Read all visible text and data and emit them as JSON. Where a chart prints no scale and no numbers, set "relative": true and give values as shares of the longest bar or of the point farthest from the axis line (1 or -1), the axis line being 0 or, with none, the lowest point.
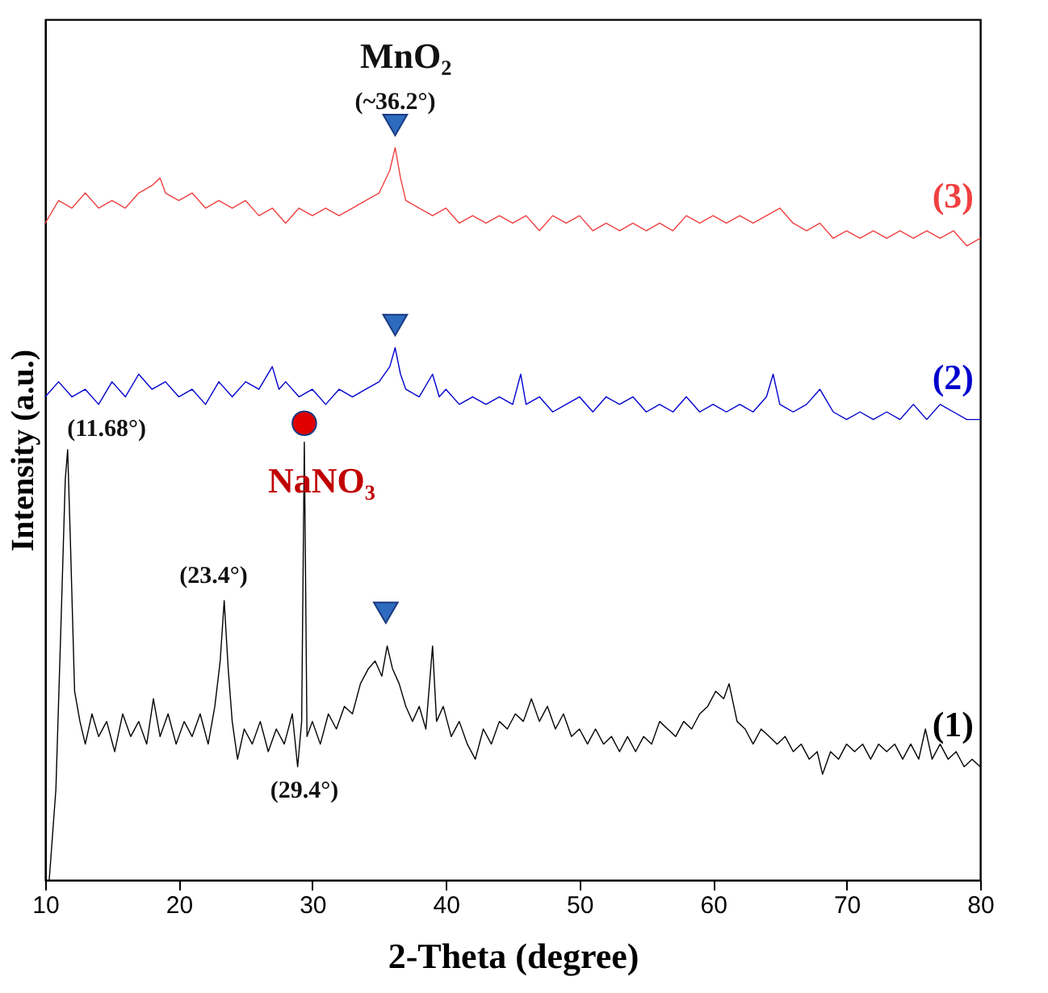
{
  "chart_data": {
    "type": "line",
    "relative": true,
    "xlabel": "2-Theta (degree)",
    "ylabel": "Intensity (a.u.)",
    "xlim": [
      10,
      80
    ],
    "xticks": [
      10,
      20,
      30,
      40,
      50,
      60,
      70,
      80
    ],
    "tick_labels": "x",
    "grid": false,
    "line_style": "solid",
    "marker": "none",
    "series": [
      {
        "name": "(1)",
        "color": "#000000",
        "x": [
          10.3,
          10.8,
          11.2,
          11.5,
          11.68,
          11.9,
          12.2,
          12.6,
          13.0,
          13.5,
          14.0,
          14.6,
          15.2,
          15.8,
          16.4,
          17.0,
          17.6,
          18.1,
          18.6,
          19.2,
          19.8,
          20.4,
          21.0,
          21.6,
          22.2,
          22.7,
          23.1,
          23.4,
          23.7,
          24.0,
          24.4,
          24.9,
          25.5,
          26.1,
          26.7,
          27.3,
          27.9,
          28.5,
          28.9,
          29.2,
          29.4,
          29.6,
          30.0,
          30.6,
          31.2,
          31.8,
          32.4,
          33.0,
          33.6,
          34.2,
          34.7,
          35.2,
          35.6,
          36.0,
          36.5,
          37.0,
          37.5,
          38.0,
          38.5,
          39.0,
          39.3,
          39.8,
          40.4,
          41.0,
          41.6,
          42.2,
          42.8,
          43.4,
          44.0,
          44.6,
          45.2,
          45.8,
          46.4,
          47.0,
          47.6,
          48.2,
          48.8,
          49.4,
          50.0,
          50.6,
          51.2,
          51.8,
          52.4,
          53.0,
          53.6,
          54.2,
          54.8,
          55.4,
          56.0,
          56.6,
          57.2,
          57.8,
          58.4,
          59.0,
          59.6,
          60.2,
          60.8,
          61.2,
          61.8,
          62.4,
          63.0,
          63.6,
          64.2,
          64.8,
          65.4,
          66.0,
          66.6,
          67.2,
          67.8,
          68.2,
          68.8,
          69.4,
          70.0,
          70.6,
          71.2,
          71.8,
          72.4,
          73.0,
          73.6,
          74.2,
          74.8,
          75.4,
          75.9,
          76.4,
          77.0,
          77.6,
          78.2,
          78.8,
          79.4,
          80.0
        ],
        "values": [
          0,
          0.12,
          0.35,
          0.53,
          0.57,
          0.44,
          0.25,
          0.21,
          0.18,
          0.22,
          0.19,
          0.21,
          0.17,
          0.22,
          0.19,
          0.21,
          0.18,
          0.24,
          0.19,
          0.22,
          0.18,
          0.21,
          0.19,
          0.22,
          0.18,
          0.23,
          0.29,
          0.37,
          0.28,
          0.21,
          0.16,
          0.2,
          0.18,
          0.21,
          0.17,
          0.2,
          0.18,
          0.22,
          0.15,
          0.21,
          0.58,
          0.19,
          0.21,
          0.18,
          0.22,
          0.2,
          0.23,
          0.22,
          0.26,
          0.28,
          0.29,
          0.27,
          0.31,
          0.28,
          0.26,
          0.23,
          0.21,
          0.23,
          0.2,
          0.31,
          0.21,
          0.23,
          0.19,
          0.21,
          0.18,
          0.16,
          0.2,
          0.18,
          0.21,
          0.2,
          0.22,
          0.21,
          0.24,
          0.21,
          0.23,
          0.2,
          0.22,
          0.19,
          0.2,
          0.18,
          0.2,
          0.18,
          0.19,
          0.17,
          0.19,
          0.17,
          0.19,
          0.18,
          0.21,
          0.2,
          0.19,
          0.21,
          0.2,
          0.22,
          0.23,
          0.25,
          0.24,
          0.26,
          0.21,
          0.2,
          0.18,
          0.2,
          0.19,
          0.18,
          0.19,
          0.17,
          0.18,
          0.16,
          0.17,
          0.14,
          0.17,
          0.16,
          0.18,
          0.17,
          0.18,
          0.16,
          0.18,
          0.17,
          0.18,
          0.16,
          0.18,
          0.16,
          0.2,
          0.16,
          0.18,
          0.16,
          0.17,
          0.15,
          0.16,
          0.15
        ]
      },
      {
        "name": "(2)",
        "color": "#0000cc",
        "x": [
          10,
          11,
          12,
          13,
          14,
          15,
          16,
          17,
          18,
          19,
          20,
          21,
          22,
          23,
          24,
          25,
          26,
          27,
          27.5,
          28,
          29,
          30,
          31,
          32,
          33,
          34,
          35,
          35.8,
          36.2,
          36.6,
          37,
          38,
          39,
          39.5,
          40,
          41,
          42,
          43,
          44,
          45,
          45.6,
          46,
          47,
          48,
          49,
          50,
          51,
          52,
          53,
          54,
          55,
          56,
          57,
          58,
          59,
          60,
          61,
          62,
          63,
          64,
          64.5,
          65,
          66,
          67,
          68,
          69,
          70,
          71,
          72,
          73,
          74,
          75,
          76,
          77,
          78,
          79,
          80
        ],
        "values": [
          0.64,
          0.66,
          0.64,
          0.65,
          0.63,
          0.66,
          0.64,
          0.67,
          0.65,
          0.66,
          0.64,
          0.65,
          0.63,
          0.66,
          0.64,
          0.66,
          0.65,
          0.68,
          0.65,
          0.66,
          0.64,
          0.65,
          0.63,
          0.65,
          0.64,
          0.65,
          0.66,
          0.68,
          0.705,
          0.67,
          0.65,
          0.64,
          0.67,
          0.64,
          0.65,
          0.63,
          0.64,
          0.63,
          0.64,
          0.63,
          0.67,
          0.63,
          0.64,
          0.62,
          0.63,
          0.64,
          0.62,
          0.64,
          0.63,
          0.64,
          0.62,
          0.63,
          0.62,
          0.64,
          0.62,
          0.63,
          0.62,
          0.63,
          0.62,
          0.64,
          0.67,
          0.63,
          0.62,
          0.63,
          0.65,
          0.62,
          0.61,
          0.62,
          0.61,
          0.62,
          0.61,
          0.63,
          0.61,
          0.63,
          0.62,
          0.61,
          0.61
        ]
      },
      {
        "name": "(3)",
        "color": "#f04040",
        "x": [
          10,
          11,
          12,
          13,
          14,
          15,
          16,
          17,
          18,
          18.6,
          19,
          20,
          21,
          22,
          23,
          24,
          25,
          26,
          27,
          28,
          29,
          30,
          31,
          32,
          33,
          34,
          35,
          35.8,
          36.2,
          36.6,
          37,
          38,
          39,
          40,
          41,
          42,
          43,
          44,
          45,
          46,
          47,
          48,
          49,
          50,
          51,
          52,
          53,
          54,
          55,
          56,
          57,
          58,
          59,
          60,
          61,
          62,
          63,
          64,
          65,
          66,
          67,
          68,
          69,
          70,
          71,
          72,
          73,
          74,
          75,
          76,
          77,
          78,
          79,
          80
        ],
        "values": [
          0.87,
          0.9,
          0.89,
          0.91,
          0.89,
          0.9,
          0.89,
          0.91,
          0.92,
          0.93,
          0.91,
          0.9,
          0.91,
          0.89,
          0.9,
          0.89,
          0.9,
          0.88,
          0.89,
          0.87,
          0.89,
          0.88,
          0.89,
          0.88,
          0.89,
          0.9,
          0.91,
          0.94,
          0.97,
          0.93,
          0.9,
          0.89,
          0.88,
          0.89,
          0.87,
          0.88,
          0.87,
          0.88,
          0.87,
          0.88,
          0.86,
          0.88,
          0.87,
          0.88,
          0.86,
          0.87,
          0.86,
          0.87,
          0.86,
          0.87,
          0.86,
          0.88,
          0.87,
          0.88,
          0.87,
          0.88,
          0.87,
          0.88,
          0.89,
          0.87,
          0.86,
          0.87,
          0.85,
          0.86,
          0.85,
          0.86,
          0.85,
          0.86,
          0.85,
          0.86,
          0.85,
          0.86,
          0.84,
          0.85
        ]
      },
      {
        "type": "scatter",
        "marker": "triangle",
        "color": "#2e6bbf",
        "x": [
          35.5,
          36.2,
          36.2
        ],
        "values": [
          0.354,
          0.735,
          1.0
        ]
      },
      {
        "type": "scatter",
        "marker": "circle",
        "color": "#e00000",
        "x": [
          29.4
        ],
        "values": [
          0.605
        ]
      }
    ],
    "annotations": [
      "MnO₂",
      "(~36.2°)",
      "NaNO₃",
      "(11.68°)",
      "(23.4°)",
      "(29.4°)"
    ]
  }
}
